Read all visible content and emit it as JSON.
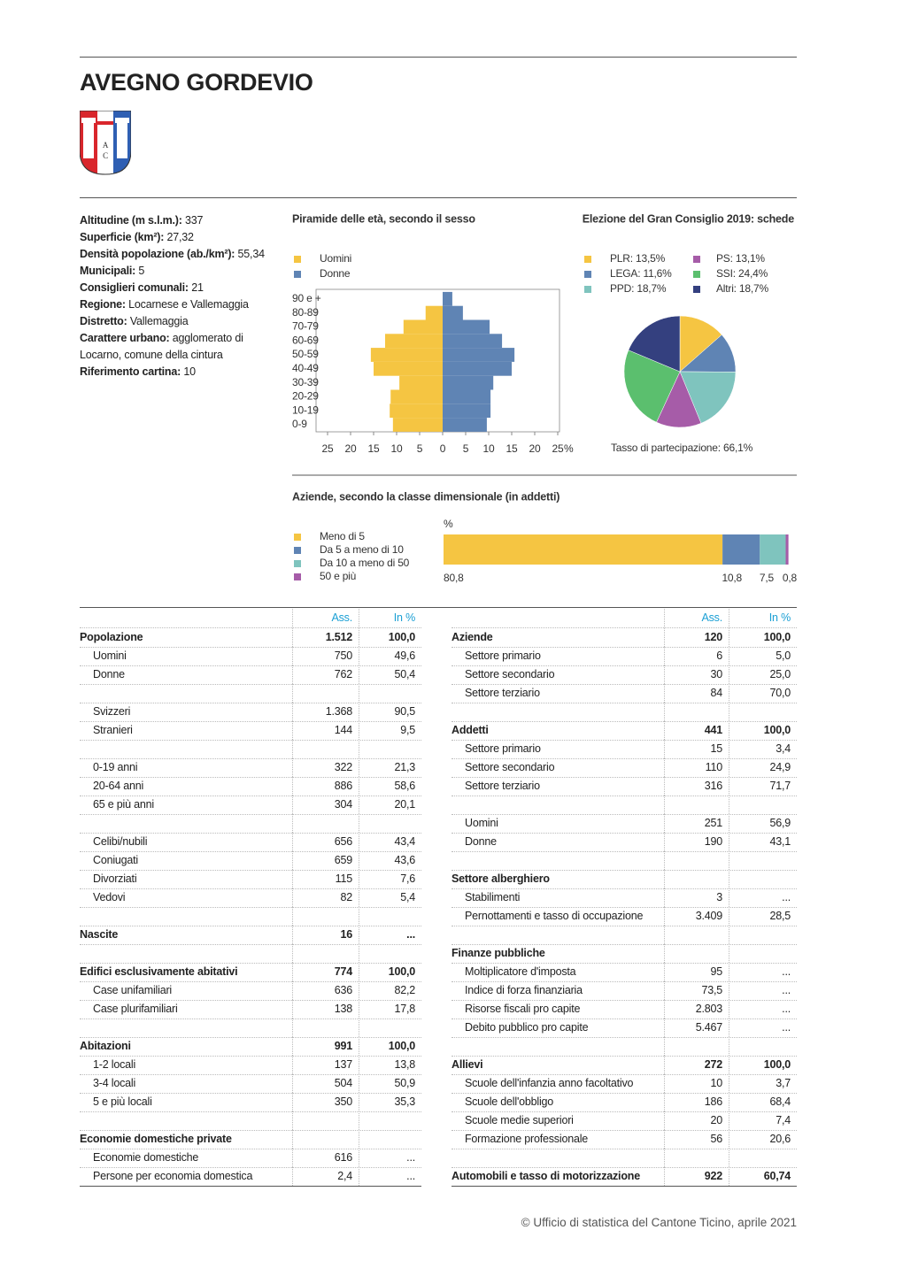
{
  "title": "AVEGNO GORDEVIO",
  "emblem": {
    "letters": [
      "A",
      "C"
    ]
  },
  "info": [
    {
      "label": "Altitudine (m s.l.m.):",
      "value": "337"
    },
    {
      "label": "Superficie (km²):",
      "value": "27,32"
    },
    {
      "label": "Densità popolazione (ab./km²):",
      "value": "55,34"
    },
    {
      "label": "Municipali:",
      "value": "5"
    },
    {
      "label": "Consiglieri comunali:",
      "value": "21"
    },
    {
      "label": "Regione:",
      "value": "Locarnese e Vallemaggia"
    },
    {
      "label": "Distretto:",
      "value": "Vallemaggia"
    },
    {
      "label": "Carattere urbano:",
      "value": "agglomerato di Locarno, comune della cintura"
    },
    {
      "label": "Riferimento cartina:",
      "value": "10"
    }
  ],
  "chart_data": [
    {
      "type": "pyramid",
      "title": "Piramide delle età, secondo il sesso",
      "categories": [
        "0-9",
        "10-19",
        "20-29",
        "30-39",
        "40-49",
        "50-59",
        "60-69",
        "70-79",
        "80-89",
        "90 e +"
      ],
      "series": [
        {
          "name": "Uomini",
          "color": "#f5c542",
          "values": [
            10.8,
            11.5,
            11.3,
            9.4,
            15,
            15.6,
            12.5,
            8.5,
            3.7,
            0
          ]
        },
        {
          "name": "Donne",
          "color": "#5f84b4",
          "values": [
            9.6,
            10.4,
            10.4,
            11,
            15,
            15.6,
            12.9,
            10.2,
            4.4,
            2.1
          ]
        }
      ],
      "xlim": [
        -25,
        25
      ],
      "xticks": [
        {
          "value": -25,
          "label": "25"
        },
        {
          "value": -20,
          "label": "20"
        },
        {
          "value": -15,
          "label": "15"
        },
        {
          "value": -10,
          "label": "10"
        },
        {
          "value": -5,
          "label": "5"
        },
        0,
        5,
        10,
        15,
        20,
        25
      ],
      "x_unit": "%"
    },
    {
      "type": "pie",
      "title": "Elezione del Gran Consiglio 2019: schede",
      "categories": [
        "PLR: 13,5%",
        "LEGA: 11,6%",
        "PPD: 18,7%",
        "PS: 13,1%",
        "SSI: 24,4%",
        "Altri: 18,7%"
      ],
      "values": [
        13.5,
        11.6,
        18.7,
        13.1,
        24.4,
        18.7
      ],
      "colors": [
        "#f5c542",
        "#5f84b4",
        "#7fc4be",
        "#a65ca8",
        "#5bbf6e",
        "#34407f"
      ],
      "note": "Tasso di partecipazione: 66,1%"
    },
    {
      "type": "stacked_bar",
      "title": "Aziende, secondo la classe dimensionale (in addetti)",
      "unit": "%",
      "xlim": [
        0,
        100
      ],
      "series": [
        {
          "name": "Meno di 5",
          "color": "#f5c542",
          "values": [
            80.8
          ],
          "value_labels": [
            "80,8"
          ]
        },
        {
          "name": "Da 5 a meno di 10",
          "color": "#5f84b4",
          "values": [
            10.8
          ],
          "value_labels": [
            "10,8"
          ]
        },
        {
          "name": "Da 10 a meno di 50",
          "color": "#7fc4be",
          "values": [
            7.5
          ],
          "value_labels": [
            "7,5"
          ]
        },
        {
          "name": "50 e più",
          "color": "#a65ca8",
          "values": [
            0.8
          ],
          "value_labels": [
            "0,8"
          ]
        }
      ]
    }
  ],
  "tables": [
    {
      "header": [
        "Ass.",
        "In %"
      ],
      "rows": [
        {
          "label": "Popolazione",
          "ass": "1.512",
          "pct": "100,0",
          "bold": true
        },
        {
          "label": "Uomini",
          "ass": "750",
          "pct": "49,6"
        },
        {
          "label": "Donne",
          "ass": "762",
          "pct": "50,4"
        },
        null,
        {
          "label": "Svizzeri",
          "ass": "1.368",
          "pct": "90,5"
        },
        {
          "label": "Stranieri",
          "ass": "144",
          "pct": "9,5"
        },
        null,
        {
          "label": "0-19 anni",
          "ass": "322",
          "pct": "21,3"
        },
        {
          "label": "20-64 anni",
          "ass": "886",
          "pct": "58,6"
        },
        {
          "label": "65 e più anni",
          "ass": "304",
          "pct": "20,1"
        },
        null,
        {
          "label": "Celibi/nubili",
          "ass": "656",
          "pct": "43,4"
        },
        {
          "label": "Coniugati",
          "ass": "659",
          "pct": "43,6"
        },
        {
          "label": "Divorziati",
          "ass": "115",
          "pct": "7,6"
        },
        {
          "label": "Vedovi",
          "ass": "82",
          "pct": "5,4"
        },
        null,
        {
          "label": "Nascite",
          "ass": "16",
          "pct": "...",
          "bold": true
        },
        null,
        {
          "label": "Edifici esclusivamente abitativi",
          "ass": "774",
          "pct": "100,0",
          "bold": true
        },
        {
          "label": "Case unifamiliari",
          "ass": "636",
          "pct": "82,2"
        },
        {
          "label": "Case plurifamiliari",
          "ass": "138",
          "pct": "17,8"
        },
        null,
        {
          "label": "Abitazioni",
          "ass": "991",
          "pct": "100,0",
          "bold": true
        },
        {
          "label": "1-2 locali",
          "ass": "137",
          "pct": "13,8"
        },
        {
          "label": "3-4 locali",
          "ass": "504",
          "pct": "50,9"
        },
        {
          "label": "5 e più locali",
          "ass": "350",
          "pct": "35,3"
        },
        null,
        {
          "label": "Economie domestiche private",
          "bold": true
        },
        {
          "label": "Economie domestiche",
          "ass": "616",
          "pct": "..."
        },
        {
          "label": "Persone per economia domestica",
          "ass": "2,4",
          "pct": "..."
        }
      ]
    },
    {
      "header": [
        "Ass.",
        "In %"
      ],
      "rows": [
        {
          "label": "Aziende",
          "ass": "120",
          "pct": "100,0",
          "bold": true
        },
        {
          "label": "Settore primario",
          "ass": "6",
          "pct": "5,0"
        },
        {
          "label": "Settore secondario",
          "ass": "30",
          "pct": "25,0"
        },
        {
          "label": "Settore terziario",
          "ass": "84",
          "pct": "70,0"
        },
        null,
        {
          "label": "Addetti",
          "ass": "441",
          "pct": "100,0",
          "bold": true
        },
        {
          "label": "Settore primario",
          "ass": "15",
          "pct": "3,4"
        },
        {
          "label": "Settore secondario",
          "ass": "110",
          "pct": "24,9"
        },
        {
          "label": "Settore terziario",
          "ass": "316",
          "pct": "71,7"
        },
        null,
        {
          "label": "Uomini",
          "ass": "251",
          "pct": "56,9"
        },
        {
          "label": "Donne",
          "ass": "190",
          "pct": "43,1"
        },
        null,
        {
          "label": "Settore alberghiero",
          "bold": true
        },
        {
          "label": "Stabilimenti",
          "ass": "3",
          "pct": "..."
        },
        {
          "label": "Pernottamenti e tasso di occupazione",
          "ass": "3.409",
          "pct": "28,5"
        },
        null,
        {
          "label": "Finanze pubbliche",
          "bold": true
        },
        {
          "label": "Moltiplicatore d'imposta",
          "ass": "95",
          "pct": "..."
        },
        {
          "label": "Indice di forza finanziaria",
          "ass": "73,5",
          "pct": "..."
        },
        {
          "label": "Risorse fiscali pro capite",
          "ass": "2.803",
          "pct": "..."
        },
        {
          "label": "Debito pubblico pro capite",
          "ass": "5.467",
          "pct": "..."
        },
        null,
        {
          "label": "Allievi",
          "ass": "272",
          "pct": "100,0",
          "bold": true
        },
        {
          "label": "Scuole dell'infanzia anno facoltativo",
          "ass": "10",
          "pct": "3,7"
        },
        {
          "label": "Scuole dell'obbligo",
          "ass": "186",
          "pct": "68,4"
        },
        {
          "label": "Scuole medie superiori",
          "ass": "20",
          "pct": "7,4"
        },
        {
          "label": "Formazione professionale",
          "ass": "56",
          "pct": "20,6"
        },
        null,
        {
          "label": "Automobili e tasso di motorizzazione",
          "ass": "922",
          "pct": "60,74",
          "bold": true
        }
      ]
    }
  ],
  "footer": "© Ufficio di statistica del Cantone Ticino, aprile 2021"
}
